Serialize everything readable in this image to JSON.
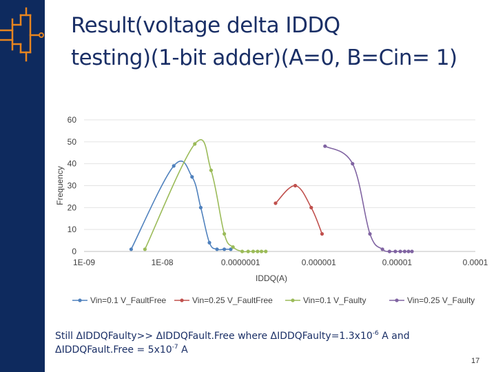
{
  "slide": {
    "title_line1": "Result(voltage delta IDDQ",
    "title_line2": "testing)(1-bit adder)(A=0, B=Cin= 1)",
    "note": {
      "part1": "Still ΔIDDQFaulty>> ΔIDDQFault.Free where ΔIDDQFaulty=1.3x10",
      "exp1": "-6",
      "part2": " A and",
      "part3": "ΔIDDQFault.Free = 5x10",
      "exp2": "-7",
      "part4": " A"
    },
    "page_number": "17"
  },
  "colors": {
    "sidebar": "#0e2a5e",
    "logo": "#e8851f",
    "title": "#1a2f66"
  },
  "chart_data": {
    "type": "scatter",
    "xlabel": "IDDQ(A)",
    "ylabel": "Frequency",
    "x_scale": "log",
    "xlim": [
      1e-09,
      0.0001
    ],
    "ylim": [
      0,
      60
    ],
    "x_tick_values": [
      1e-09,
      1e-08,
      1e-07,
      1e-06,
      1e-05,
      0.0001
    ],
    "x_tick_labels": [
      "1E-09",
      "1E-08",
      "0.0000001",
      "0.000001",
      "0.00001",
      "0.0001"
    ],
    "y_ticks": [
      0,
      10,
      20,
      30,
      40,
      50,
      60
    ],
    "y_tick_labels": [
      "0",
      "10",
      "20",
      "30",
      "40",
      "50",
      "60"
    ],
    "legend_position": "bottom",
    "series": [
      {
        "name": "Vin=0.1 V_FaultFree",
        "color": "#4f81bd",
        "points": [
          [
            4e-09,
            1
          ],
          [
            1.4e-08,
            39
          ],
          [
            2.4e-08,
            34
          ],
          [
            3.1e-08,
            20
          ],
          [
            4e-08,
            4
          ],
          [
            5e-08,
            1
          ],
          [
            6.2e-08,
            1
          ],
          [
            7.5e-08,
            1
          ]
        ]
      },
      {
        "name": "Vin=0.25 V_FaultFree",
        "color": "#c0504d",
        "points": [
          [
            2.8e-07,
            22
          ],
          [
            5e-07,
            30
          ],
          [
            8e-07,
            20
          ],
          [
            1.1e-06,
            8
          ]
        ]
      },
      {
        "name": "Vin=0.1 V_Faulty",
        "color": "#9bbb59",
        "points": [
          [
            6e-09,
            1
          ],
          [
            2.6e-08,
            49
          ],
          [
            4.2e-08,
            37
          ],
          [
            6.2e-08,
            8
          ],
          [
            8e-08,
            2
          ],
          [
            1.05e-07,
            0
          ],
          [
            1.25e-07,
            0
          ],
          [
            1.45e-07,
            0
          ],
          [
            1.65e-07,
            0
          ],
          [
            1.85e-07,
            0
          ],
          [
            2.1e-07,
            0
          ]
        ]
      },
      {
        "name": "Vin=0.25 V_Faulty",
        "color": "#8064a2",
        "points": [
          [
            1.2e-06,
            48
          ],
          [
            2.7e-06,
            40
          ],
          [
            4.5e-06,
            8
          ],
          [
            6.5e-06,
            1
          ],
          [
            8e-06,
            0
          ],
          [
            9.5e-06,
            0
          ],
          [
            1.1e-05,
            0
          ],
          [
            1.25e-05,
            0
          ],
          [
            1.4e-05,
            0
          ],
          [
            1.55e-05,
            0
          ]
        ]
      }
    ]
  }
}
